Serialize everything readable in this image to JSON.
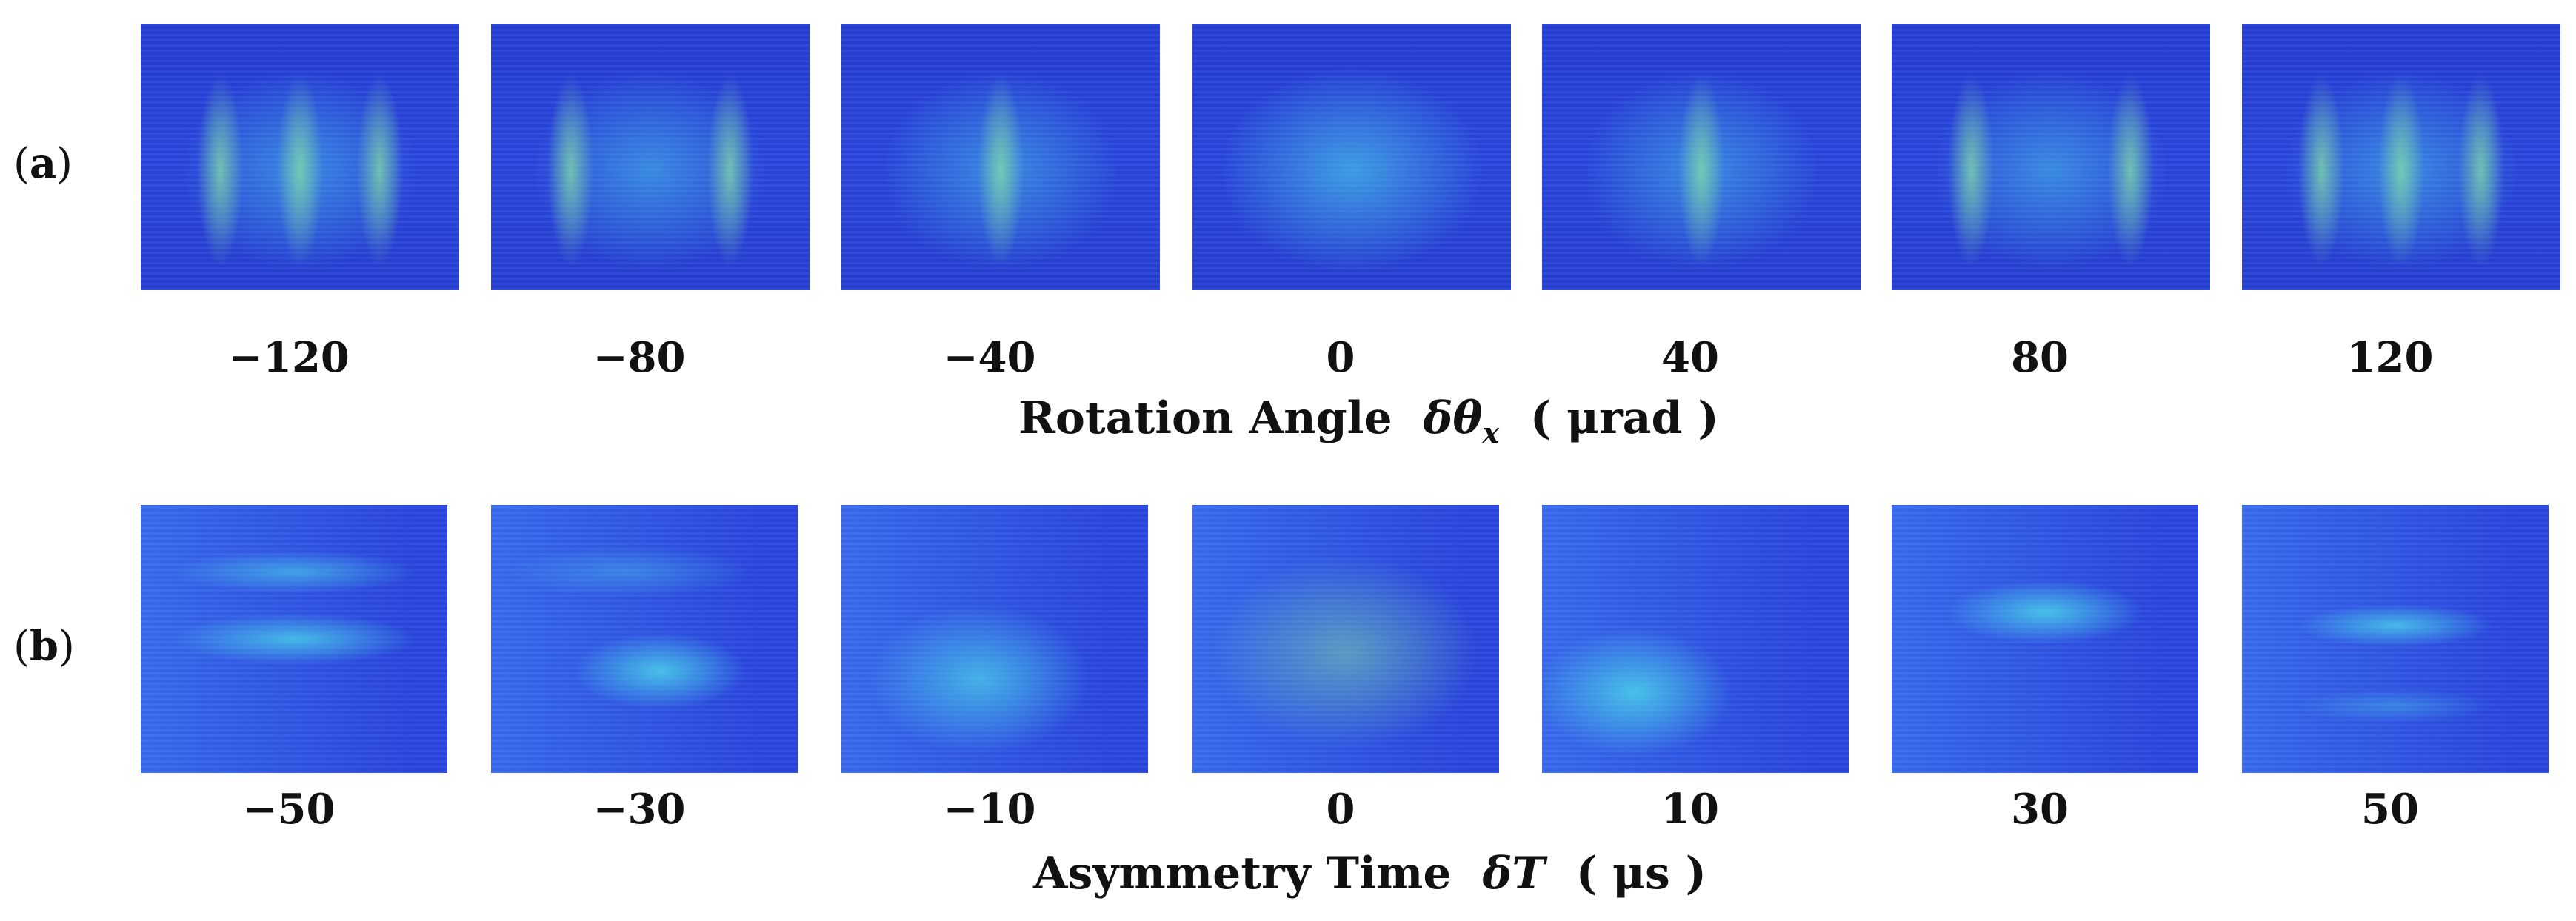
{
  "figure": {
    "row_a": {
      "label": "(a)",
      "label_letter": "a",
      "axis_title_text": "Rotation Angle",
      "axis_symbol": "δθ",
      "axis_symbol_sub": "x",
      "axis_unit": "( μrad )",
      "ticks": [
        "−120",
        "−80",
        "−40",
        "0",
        "40",
        "80",
        "120"
      ]
    },
    "row_b": {
      "label": "(b)",
      "label_letter": "b",
      "axis_title_text": "Asymmetry Time",
      "axis_symbol": "δT",
      "axis_unit": "( μs )",
      "ticks": [
        "−50",
        "−30",
        "−10",
        "0",
        "10",
        "30",
        "50"
      ]
    },
    "colors": {
      "background_blue": "#2b47e0",
      "fringe_cyan": "#49c8e8",
      "fringe_green": "#7fd8a8"
    }
  }
}
